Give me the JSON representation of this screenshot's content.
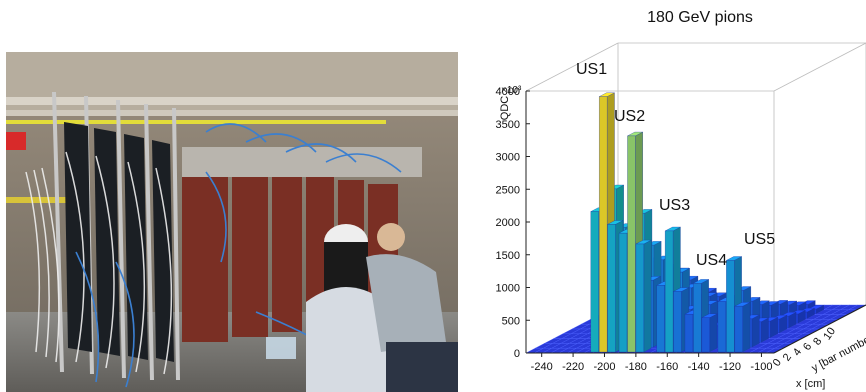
{
  "chart_data": {
    "type": "bar3d",
    "title": "180 GeV pions",
    "zlabel": "QDC",
    "z_multiplier": "×10³",
    "xlabel": "x [cm]",
    "ylabel": "y [bar number]",
    "zlim": [
      0,
      4000
    ],
    "z_ticks": [
      "0",
      "500",
      "1000",
      "1500",
      "2000",
      "2500",
      "3000",
      "3500",
      "4000"
    ],
    "x_ticks": [
      "-240",
      "-220",
      "-200",
      "-180",
      "-160",
      "-140",
      "-120",
      "-100"
    ],
    "y_ticks": [
      "0",
      "2",
      "4",
      "6",
      "8",
      "10"
    ],
    "annotations": [
      "US1",
      "US2",
      "US3",
      "US4",
      "US5"
    ],
    "peak_values": [
      {
        "label": "US1",
        "x": -202,
        "value": 3900
      },
      {
        "label": "US2",
        "x": -184,
        "value": 3300
      },
      {
        "label": "US3",
        "x": -160,
        "value": 1850
      },
      {
        "label": "US4",
        "x": -142,
        "value": 1050
      },
      {
        "label": "US5",
        "x": -121,
        "value": 1400
      }
    ]
  },
  "colors": {
    "low": "#1f4fe0",
    "mid": "#16b8c9",
    "high": "#f5d11d"
  }
}
